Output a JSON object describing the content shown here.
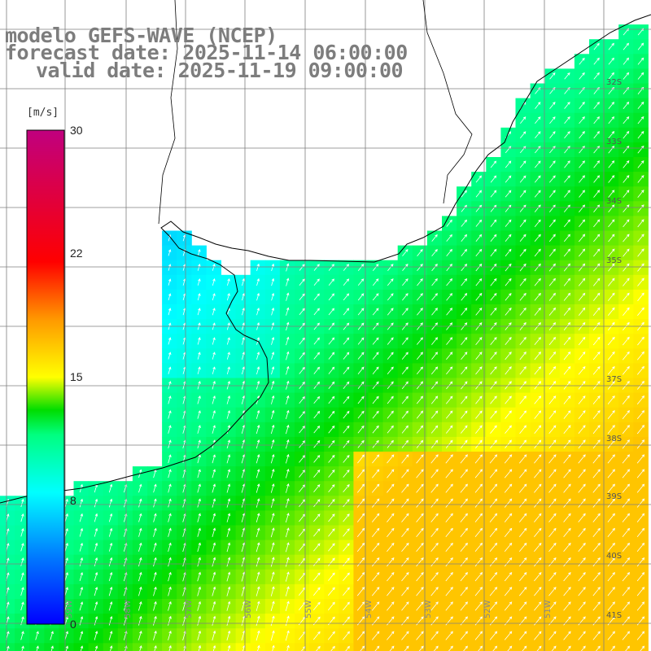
{
  "title": {
    "model": "modelo GEFS-WAVE (NCEP)",
    "forecast": "forecast date: 2025-11-14 06:00:00",
    "valid": "valid date: 2025-11-19 09:00:00"
  },
  "colorbar": {
    "unit": "[m/s]",
    "ticks": [
      "30",
      "22",
      "15",
      "8",
      "0"
    ],
    "tick_values": [
      30,
      22,
      15,
      8,
      0
    ],
    "range": [
      0,
      30
    ],
    "stops": [
      {
        "v": 0,
        "c": "#0000ff"
      },
      {
        "v": 4,
        "c": "#0077ff"
      },
      {
        "v": 8,
        "c": "#00ffff"
      },
      {
        "v": 11.5,
        "c": "#00ff80"
      },
      {
        "v": 13,
        "c": "#00dd00"
      },
      {
        "v": 15,
        "c": "#ffff00"
      },
      {
        "v": 18.5,
        "c": "#ff9900"
      },
      {
        "v": 22,
        "c": "#ff0000"
      },
      {
        "v": 30,
        "c": "#c0007f"
      }
    ]
  },
  "lat_labels": [
    "32S",
    "33S",
    "34S",
    "35S",
    "37S",
    "38S",
    "39S",
    "40S",
    "41S"
  ],
  "lon_labels": [
    "59W",
    "58W",
    "57W",
    "56W",
    "55W",
    "54W",
    "53W",
    "52W",
    "51W"
  ],
  "colors": {
    "land": "#ffffff",
    "grid": "#7f7f7f",
    "coast": "#000000",
    "arrow": "#ffffff",
    "title": "#7d7d7d"
  }
}
